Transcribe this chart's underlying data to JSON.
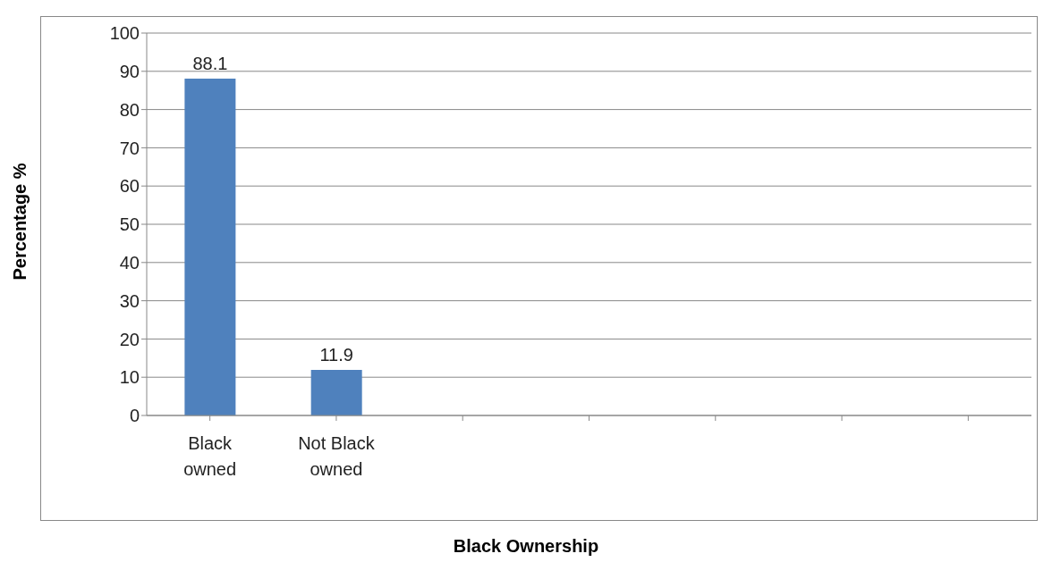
{
  "chart_data": {
    "type": "bar",
    "xlabel": "Black Ownership",
    "ylabel": "Percentage %",
    "categories": [
      "Black owned",
      "Not Black owned",
      null,
      null,
      null,
      null,
      null
    ],
    "values": [
      88.1,
      11.9,
      null,
      null,
      null,
      null,
      null
    ],
    "color": "#4f81bd",
    "ylim": [
      0,
      100
    ],
    "yticks": [
      0,
      10,
      20,
      30,
      40,
      50,
      60,
      70,
      80,
      90,
      100
    ],
    "grid": "y",
    "data_labels": true
  }
}
